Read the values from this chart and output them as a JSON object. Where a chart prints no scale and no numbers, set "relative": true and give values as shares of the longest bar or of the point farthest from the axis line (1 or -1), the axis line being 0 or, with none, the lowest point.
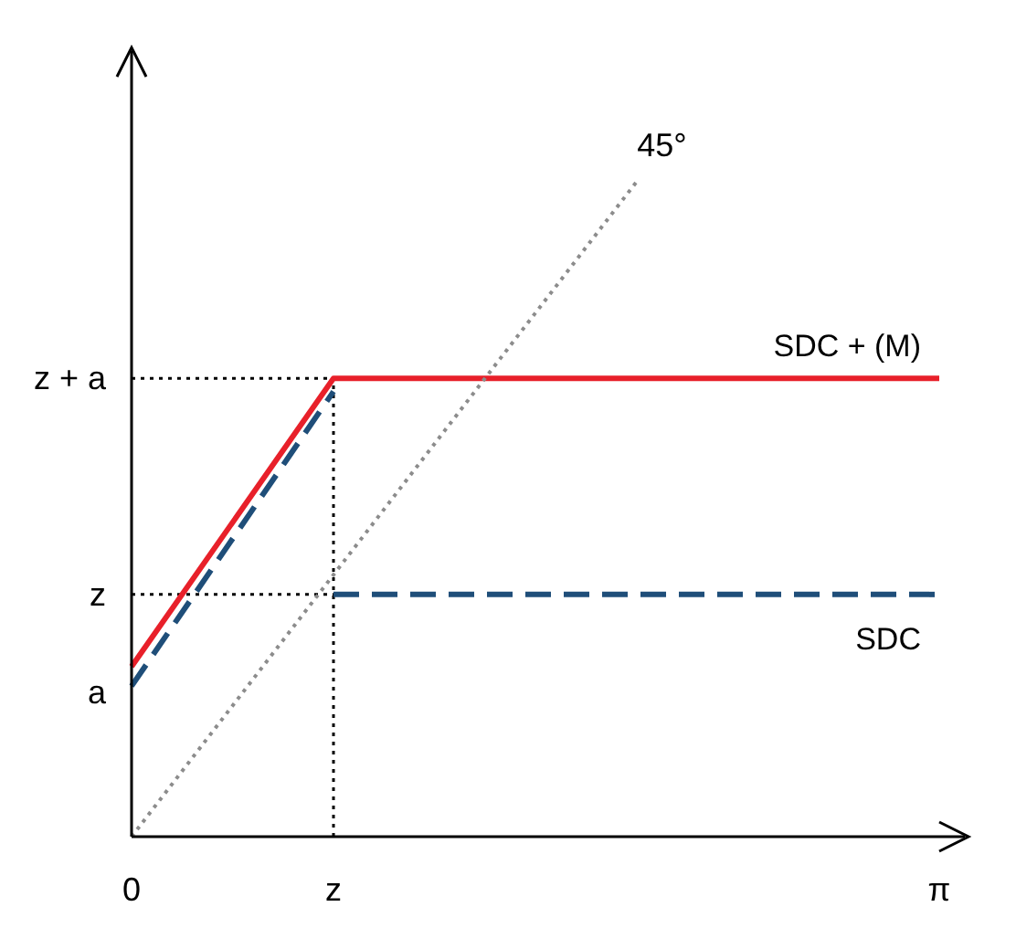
{
  "chart_data": {
    "type": "line",
    "relative": true,
    "marker": "none",
    "categories": [
      "0",
      null,
      "z",
      null,
      null,
      null,
      null,
      null,
      "π"
    ],
    "series": [
      {
        "name": "SDC + (M)",
        "color": "#e8202a",
        "line_style": "solid",
        "values": [
          0.26,
          null,
          0.7,
          null,
          null,
          null,
          null,
          null,
          0.7
        ]
      },
      {
        "name": "SDC",
        "color": "#1f4e79",
        "line_style": "dashed",
        "values": [
          null,
          null,
          0.37,
          null,
          null,
          null,
          null,
          null,
          0.37
        ]
      },
      {
        "color": "#1f4e79",
        "line_style": "dashed",
        "values": [
          0.23,
          null,
          0.68,
          null,
          null,
          null,
          null,
          null,
          null
        ]
      },
      {
        "color": "#8c8c8c",
        "line_style": "dotted",
        "values": [
          0,
          null,
          null,
          null,
          null,
          1,
          null,
          null,
          null
        ]
      }
    ],
    "ref_lines": [
      {
        "axis": "y",
        "value": 0.7,
        "label": "z + a",
        "color": "#000000",
        "line_style": "dotted"
      },
      {
        "axis": "y",
        "value": 0.37,
        "label": "z",
        "color": "#000000",
        "line_style": "dotted"
      },
      {
        "axis": "x",
        "value": "z",
        "color": "#000000",
        "line_style": "dotted"
      }
    ],
    "annotations": [
      {
        "text": "a",
        "x": "0",
        "y": 0.22
      },
      "45°"
    ]
  }
}
